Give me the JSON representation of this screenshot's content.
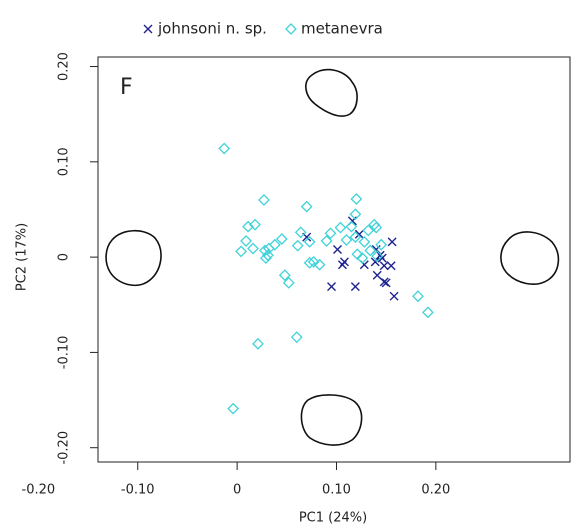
{
  "chart_data": {
    "type": "scatter",
    "panel_label": "F",
    "xlabel": "PC1 (24%)",
    "ylabel": "PC2 (17%)",
    "xlim": [
      -0.14,
      0.335
    ],
    "ylim": [
      -0.215,
      0.21
    ],
    "xticks": [
      {
        "value": -0.2,
        "label": "-0.20"
      },
      {
        "value": -0.1,
        "label": "-0.10"
      },
      0,
      {
        "value": 0.1,
        "label": "0.10"
      },
      {
        "value": 0.2,
        "label": "0.20"
      }
    ],
    "yticks": [
      {
        "value": 0.2,
        "label": "0.20"
      },
      {
        "value": 0.1,
        "label": "0.10"
      },
      0,
      {
        "value": -0.1,
        "label": "-0.10"
      },
      {
        "value": -0.2,
        "label": "-0.20"
      }
    ],
    "series": [
      {
        "name": "johnsoni n. sp.",
        "color": "#1e2390",
        "marker": "x",
        "x": [
          0.07,
          0.101,
          0.108,
          0.106,
          0.116,
          0.123,
          0.095,
          0.119,
          0.128,
          0.14,
          0.139,
          0.141,
          0.144,
          0.146,
          0.148,
          0.15,
          0.155,
          0.156,
          0.148,
          0.158
        ],
        "values": [
          0.021,
          0.008,
          -0.005,
          -0.008,
          0.038,
          0.024,
          -0.031,
          -0.031,
          -0.008,
          0.008,
          -0.005,
          -0.019,
          0.002,
          -0.001,
          -0.009,
          -0.027,
          -0.009,
          0.016,
          -0.026,
          -0.041
        ]
      },
      {
        "name": "metanevra",
        "color": "#3fd3d8",
        "marker": "diamond",
        "x": [
          -0.013,
          0.027,
          0.018,
          0.011,
          0.009,
          0.004,
          0.016,
          0.028,
          0.032,
          0.029,
          0.031,
          0.045,
          0.064,
          0.07,
          0.048,
          0.052,
          0.061,
          0.073,
          0.073,
          0.077,
          0.083,
          0.09,
          0.094,
          0.104,
          0.11,
          0.115,
          0.119,
          0.12,
          0.119,
          0.121,
          0.128,
          0.134,
          0.132,
          0.138,
          0.126,
          0.141,
          0.14,
          0.145,
          0.182,
          0.192,
          0.021,
          0.06,
          -0.004,
          0.038
        ],
        "values": [
          0.114,
          0.06,
          0.034,
          0.032,
          0.017,
          0.006,
          0.009,
          0.007,
          0.009,
          -0.001,
          0.002,
          0.019,
          0.026,
          0.053,
          -0.019,
          -0.027,
          0.012,
          0.016,
          -0.006,
          -0.005,
          -0.008,
          0.017,
          0.025,
          0.031,
          0.018,
          0.032,
          0.021,
          0.061,
          0.045,
          0.003,
          0.016,
          0.007,
          0.028,
          0.034,
          -0.001,
          0.001,
          0.031,
          0.013,
          -0.041,
          -0.058,
          -0.091,
          -0.084,
          -0.159,
          0.013
        ]
      }
    ]
  }
}
